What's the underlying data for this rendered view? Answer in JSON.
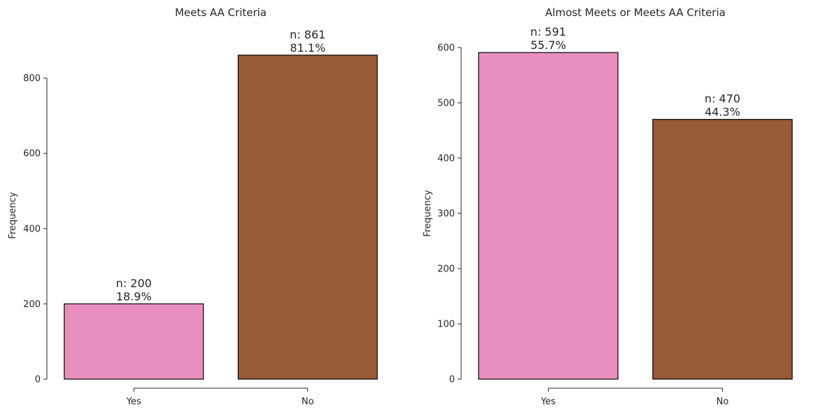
{
  "chart_data": [
    {
      "type": "bar",
      "title": "Meets AA Criteria",
      "xlabel": "",
      "ylabel": "Frequency",
      "categories": [
        "Yes",
        "No"
      ],
      "values": [
        200,
        861
      ],
      "bar_labels": [
        {
          "count": "n: 200",
          "percent": "18.9%"
        },
        {
          "count": "n: 861",
          "percent": "81.1%"
        }
      ],
      "colors": [
        "#e98fbf",
        "#985b37"
      ],
      "ylim": [
        0,
        870
      ],
      "yticks": [
        0,
        200,
        400,
        600,
        800
      ],
      "ytick_labels": [
        "0",
        "200",
        "400",
        "600",
        "800"
      ],
      "grid": false,
      "legend": null
    },
    {
      "type": "bar",
      "title": "Almost Meets or Meets AA Criteria",
      "xlabel": "",
      "ylabel": "Frequency",
      "categories": [
        "Yes",
        "No"
      ],
      "values": [
        591,
        470
      ],
      "bar_labels": [
        {
          "count": "n: 591",
          "percent": "55.7%"
        },
        {
          "count": "n: 470",
          "percent": "44.3%"
        }
      ],
      "colors": [
        "#e98fbf",
        "#985b37"
      ],
      "ylim": [
        0,
        600
      ],
      "yticks": [
        0,
        100,
        200,
        300,
        400,
        500,
        600
      ],
      "ytick_labels": [
        "0",
        "100",
        "200",
        "300",
        "400",
        "500",
        "600"
      ],
      "grid": false,
      "legend": null
    }
  ]
}
